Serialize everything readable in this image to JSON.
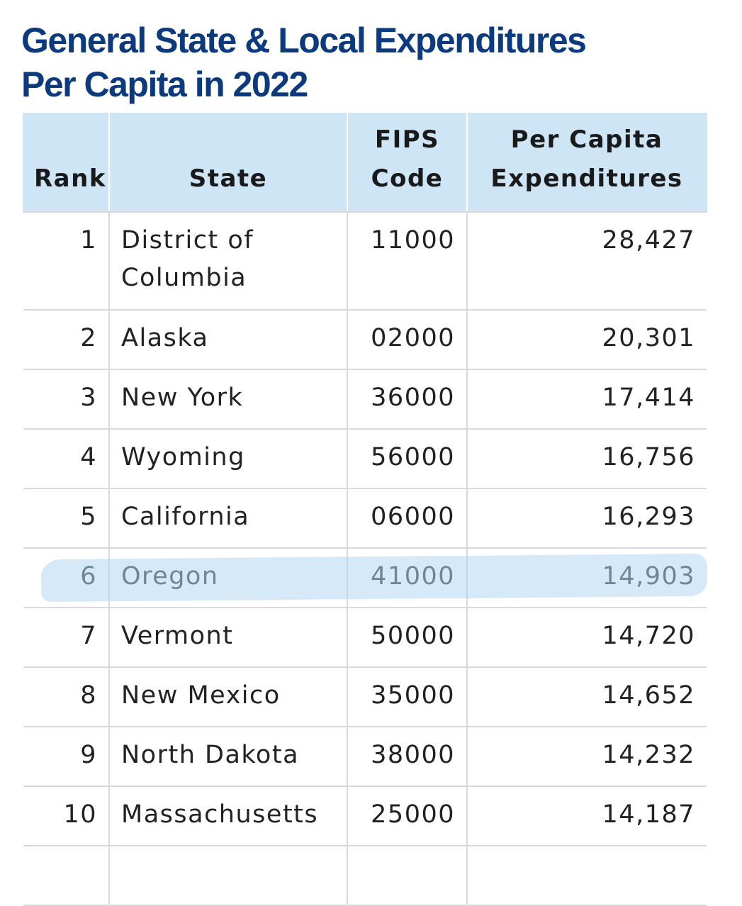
{
  "title_lines": [
    "General State & Local Expenditures",
    "Per Capita in 2022"
  ],
  "table": {
    "headers": {
      "rank": "Rank",
      "state": "State",
      "fips_line1": "FIPS",
      "fips_line2": "Code",
      "exp_line1": "Per Capita",
      "exp_line2": "Expenditures"
    },
    "rows": [
      {
        "rank": "1",
        "state_line1": "District of",
        "state_line2": "Columbia",
        "fips": "11000",
        "expenditures": "28,427"
      },
      {
        "rank": "2",
        "state_line1": "Alaska",
        "state_line2": "",
        "fips": "02000",
        "expenditures": "20,301"
      },
      {
        "rank": "3",
        "state_line1": "New York",
        "state_line2": "",
        "fips": "36000",
        "expenditures": "17,414"
      },
      {
        "rank": "4",
        "state_line1": "Wyoming",
        "state_line2": "",
        "fips": "56000",
        "expenditures": "16,756"
      },
      {
        "rank": "5",
        "state_line1": "California",
        "state_line2": "",
        "fips": "06000",
        "expenditures": "16,293"
      },
      {
        "rank": "6",
        "state_line1": "Oregon",
        "state_line2": "",
        "fips": "41000",
        "expenditures": "14,903"
      },
      {
        "rank": "7",
        "state_line1": "Vermont",
        "state_line2": "",
        "fips": "50000",
        "expenditures": "14,720"
      },
      {
        "rank": "8",
        "state_line1": "New Mexico",
        "state_line2": "",
        "fips": "35000",
        "expenditures": "14,652"
      },
      {
        "rank": "9",
        "state_line1": "North Dakota",
        "state_line2": "",
        "fips": "38000",
        "expenditures": "14,232"
      },
      {
        "rank": "10",
        "state_line1": "Massachusetts",
        "state_line2": "",
        "fips": "25000",
        "expenditures": "14,187"
      }
    ],
    "highlighted_rank": "6"
  },
  "colors": {
    "title": "#0b3a7e",
    "header_background": "#cde5f5",
    "highlight_marker": "#b3d7f3",
    "grid_lines": "#d9d9d9"
  }
}
